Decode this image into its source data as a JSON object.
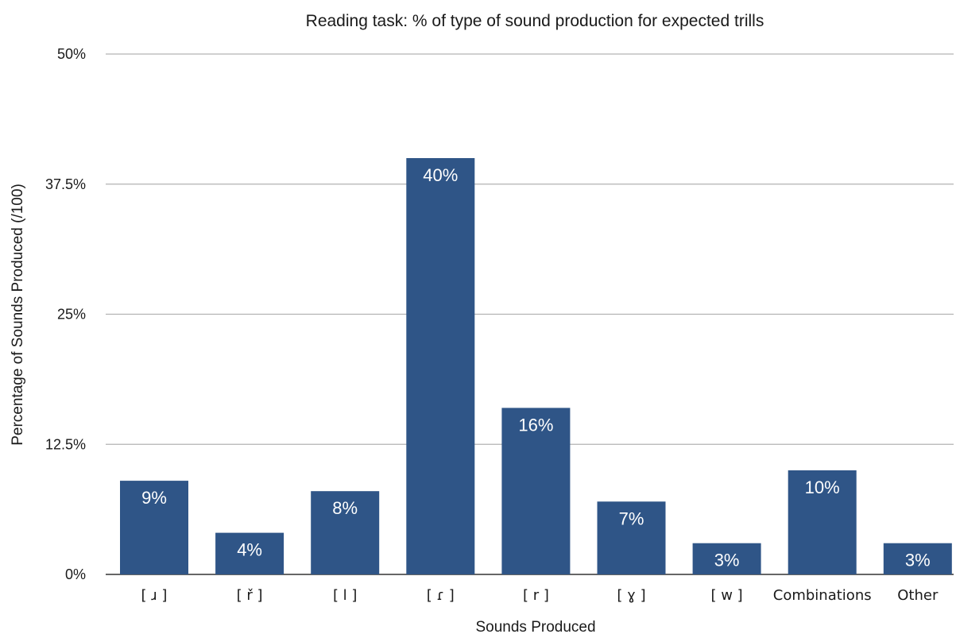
{
  "chart_data": {
    "type": "bar",
    "title": "Reading task: % of type of sound production for expected trills",
    "xlabel": "Sounds Produced",
    "ylabel": "Percentage of Sounds Produced (/100)",
    "ylim": [
      0,
      50
    ],
    "yticks": [
      0,
      12.5,
      25,
      37.5,
      50
    ],
    "ytick_labels": [
      "0%",
      "12.5%",
      "25%",
      "37.5%",
      "50%"
    ],
    "categories": [
      "[ ɹ ]",
      "[ ř ]",
      "[ l ]",
      "[ ɾ ]",
      "[ r ]",
      "[ ɣ ]",
      "[ w ]",
      "Combinations",
      "Other"
    ],
    "values": [
      9,
      4,
      8,
      40,
      16,
      7,
      3,
      10,
      3
    ],
    "data_labels": [
      "9%",
      "4%",
      "8%",
      "40%",
      "16%",
      "7%",
      "3%",
      "10%",
      "3%"
    ],
    "bar_color": "#2f5587",
    "grid": true,
    "legend": "none"
  }
}
